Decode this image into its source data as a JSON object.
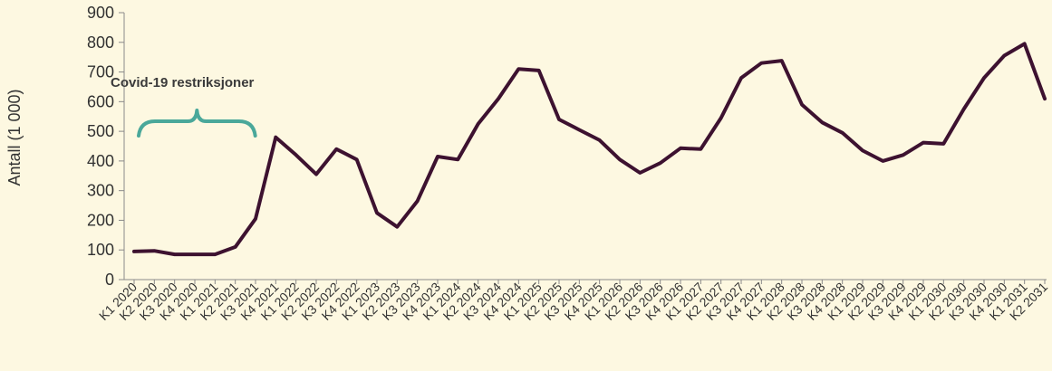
{
  "chart_data": {
    "type": "line",
    "ylabel": "Antall (1 000)",
    "ylim": [
      0,
      900
    ],
    "yticks": [
      "0",
      "100",
      "200",
      "300",
      "400",
      "500",
      "600",
      "700",
      "800",
      "900"
    ],
    "grid": false,
    "categories": [
      "K1 2020",
      "K2 2020",
      "K3 2020",
      "K4 2020",
      "K1 2021",
      "K2 2021",
      "K3 2021",
      "K4 2021",
      "K1 2022",
      "K2 2022",
      "K3 2022",
      "K4 2022",
      "K1 2023",
      "K2 2023",
      "K3 2023",
      "K4 2023",
      "K1 2024",
      "K2 2024",
      "K3 2024",
      "K4 2024",
      "K1 2025",
      "K2 2025",
      "K3 2025",
      "K4 2025",
      "K1 2026",
      "K2 2026",
      "K3 2026",
      "K4 2026",
      "K1 2027",
      "K2 2027",
      "K3 2027",
      "K4 2027",
      "K1 2028",
      "K2 2028",
      "K3 2028",
      "K4 2028",
      "K1 2029",
      "K2 2029",
      "K3 2029",
      "K4 2029",
      "K1 2030",
      "K2 2030",
      "K3 2030",
      "K4 2030",
      "K1 2031",
      "K2 2031"
    ],
    "series": [
      {
        "color": "#3d1230",
        "values": [
          95,
          97,
          85,
          85,
          85,
          110,
          205,
          480,
          420,
          355,
          440,
          405,
          225,
          178,
          265,
          415,
          405,
          525,
          610,
          710,
          705,
          540,
          505,
          470,
          405,
          360,
          393,
          443,
          440,
          545,
          680,
          730,
          738,
          590,
          530,
          495,
          435,
          400,
          420,
          462,
          458,
          575,
          680,
          755,
          795,
          610
        ]
      }
    ],
    "annotation": {
      "text": "Covid-19 restriksjoner",
      "span_categories": [
        "K1 2020",
        "K2 2021"
      ],
      "color": "#4aa89a"
    }
  }
}
